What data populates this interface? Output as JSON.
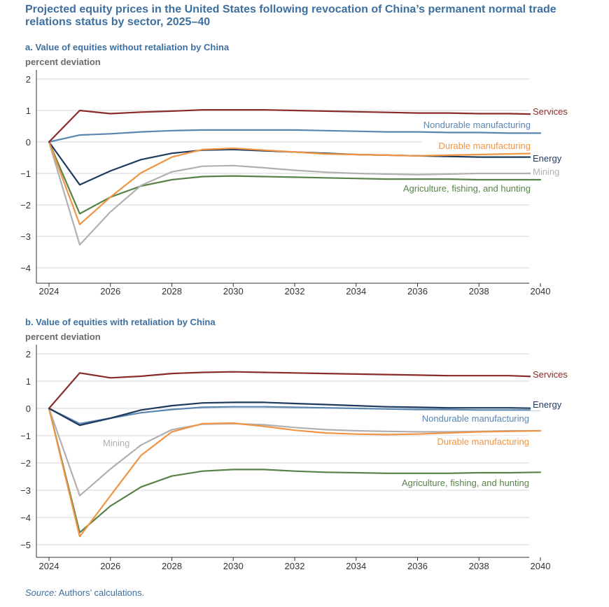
{
  "title": "Projected equity prices in the United States following revocation of China’s permanent normal trade relations status by sector, 2025–40",
  "source_label": "Source:",
  "source_text": " Authors’ calculations.",
  "chart_data": [
    {
      "type": "line",
      "title": "a. Value of equities without retaliation by China",
      "ylabel": "percent deviation",
      "xlabel": "",
      "x": [
        2024,
        2025,
        2026,
        2027,
        2028,
        2029,
        2030,
        2031,
        2032,
        2033,
        2034,
        2035,
        2036,
        2037,
        2038,
        2039,
        2040
      ],
      "xticks": [
        2024,
        2026,
        2028,
        2030,
        2032,
        2034,
        2036,
        2038,
        2040
      ],
      "yticks": [
        2,
        1,
        0,
        -1,
        -2,
        -3,
        -4
      ],
      "ylim": [
        -4.5,
        2
      ],
      "xlim": [
        2024,
        2040
      ],
      "grid": true,
      "series": [
        {
          "name": "Services",
          "color": "#8b2a2a",
          "label_pos": "right",
          "values": [
            0,
            1.0,
            0.9,
            0.95,
            0.98,
            1.02,
            1.02,
            1.02,
            1.0,
            0.98,
            0.96,
            0.94,
            0.92,
            0.92,
            0.9,
            0.9,
            0.88
          ]
        },
        {
          "name": "Nondurable manufacturing",
          "color": "#5a86b2",
          "label_pos": "inline",
          "values": [
            0,
            0.22,
            0.26,
            0.32,
            0.36,
            0.38,
            0.38,
            0.38,
            0.38,
            0.36,
            0.34,
            0.32,
            0.32,
            0.3,
            0.3,
            0.28,
            0.28
          ]
        },
        {
          "name": "Durable manufacturing",
          "color": "#ef9543",
          "label_pos": "inline",
          "values": [
            0,
            -2.62,
            -1.75,
            -0.98,
            -0.48,
            -0.24,
            -0.2,
            -0.26,
            -0.32,
            -0.38,
            -0.4,
            -0.42,
            -0.44,
            -0.42,
            -0.4,
            -0.38,
            -0.36
          ]
        },
        {
          "name": "Energy",
          "color": "#1f3a5f",
          "label_pos": "right",
          "values": [
            0,
            -1.36,
            -0.92,
            -0.56,
            -0.36,
            -0.26,
            -0.24,
            -0.28,
            -0.32,
            -0.36,
            -0.4,
            -0.42,
            -0.44,
            -0.46,
            -0.48,
            -0.48,
            -0.48
          ]
        },
        {
          "name": "Mining",
          "color": "#b0b0b0",
          "label_pos": "right",
          "values": [
            0,
            -3.27,
            -2.22,
            -1.38,
            -0.95,
            -0.77,
            -0.75,
            -0.82,
            -0.9,
            -0.96,
            -1.0,
            -1.02,
            -1.04,
            -1.02,
            -1.0,
            -1.0,
            -1.0
          ]
        },
        {
          "name": "Agriculture, fishing, and hunting",
          "color": "#5a8248",
          "label_pos": "inline",
          "values": [
            0,
            -2.28,
            -1.75,
            -1.4,
            -1.2,
            -1.1,
            -1.08,
            -1.1,
            -1.12,
            -1.14,
            -1.16,
            -1.18,
            -1.18,
            -1.18,
            -1.2,
            -1.2,
            -1.2
          ]
        }
      ]
    },
    {
      "type": "line",
      "title": "b. Value of equities with retaliation by China",
      "ylabel": "percent deviation",
      "xlabel": "",
      "x": [
        2024,
        2025,
        2026,
        2027,
        2028,
        2029,
        2030,
        2031,
        2032,
        2033,
        2034,
        2035,
        2036,
        2037,
        2038,
        2039,
        2040
      ],
      "xticks": [
        2024,
        2026,
        2028,
        2030,
        2032,
        2034,
        2036,
        2038,
        2040
      ],
      "yticks": [
        2,
        1,
        0,
        -1,
        -2,
        -3,
        -4,
        -5
      ],
      "ylim": [
        -5.4,
        2
      ],
      "xlim": [
        2024,
        2040
      ],
      "grid": true,
      "series": [
        {
          "name": "Services",
          "color": "#8b2a2a",
          "label_pos": "right",
          "values": [
            0,
            1.3,
            1.12,
            1.18,
            1.28,
            1.32,
            1.34,
            1.32,
            1.3,
            1.28,
            1.26,
            1.24,
            1.22,
            1.2,
            1.2,
            1.2,
            1.16
          ]
        },
        {
          "name": "Energy",
          "color": "#1f3a5f",
          "label_pos": "right",
          "values": [
            0,
            -0.62,
            -0.36,
            -0.06,
            0.1,
            0.2,
            0.22,
            0.22,
            0.18,
            0.14,
            0.1,
            0.06,
            0.04,
            0.02,
            0.02,
            0.02,
            0.0
          ]
        },
        {
          "name": "Nondurable manufacturing",
          "color": "#5a86b2",
          "label_pos": "inline",
          "values": [
            0,
            -0.56,
            -0.36,
            -0.16,
            -0.04,
            0.04,
            0.06,
            0.06,
            0.04,
            0.02,
            0.0,
            -0.02,
            -0.04,
            -0.04,
            -0.06,
            -0.06,
            -0.06
          ]
        },
        {
          "name": "Durable manufacturing",
          "color": "#ef9543",
          "label_pos": "inline",
          "values": [
            0,
            -4.7,
            -3.2,
            -1.72,
            -0.86,
            -0.56,
            -0.54,
            -0.66,
            -0.8,
            -0.9,
            -0.94,
            -0.96,
            -0.94,
            -0.9,
            -0.86,
            -0.84,
            -0.82
          ]
        },
        {
          "name": "Mining",
          "color": "#b0b0b0",
          "label_pos": "inline",
          "values": [
            0,
            -3.2,
            -2.22,
            -1.34,
            -0.78,
            -0.58,
            -0.56,
            -0.6,
            -0.7,
            -0.78,
            -0.82,
            -0.84,
            -0.86,
            -0.86,
            -0.84,
            -0.82,
            -0.82
          ]
        },
        {
          "name": "Agriculture, fishing, and hunting",
          "color": "#5a8248",
          "label_pos": "inline",
          "values": [
            0,
            -4.55,
            -3.58,
            -2.88,
            -2.48,
            -2.3,
            -2.24,
            -2.24,
            -2.3,
            -2.34,
            -2.36,
            -2.38,
            -2.38,
            -2.38,
            -2.36,
            -2.36,
            -2.34
          ]
        }
      ]
    }
  ]
}
